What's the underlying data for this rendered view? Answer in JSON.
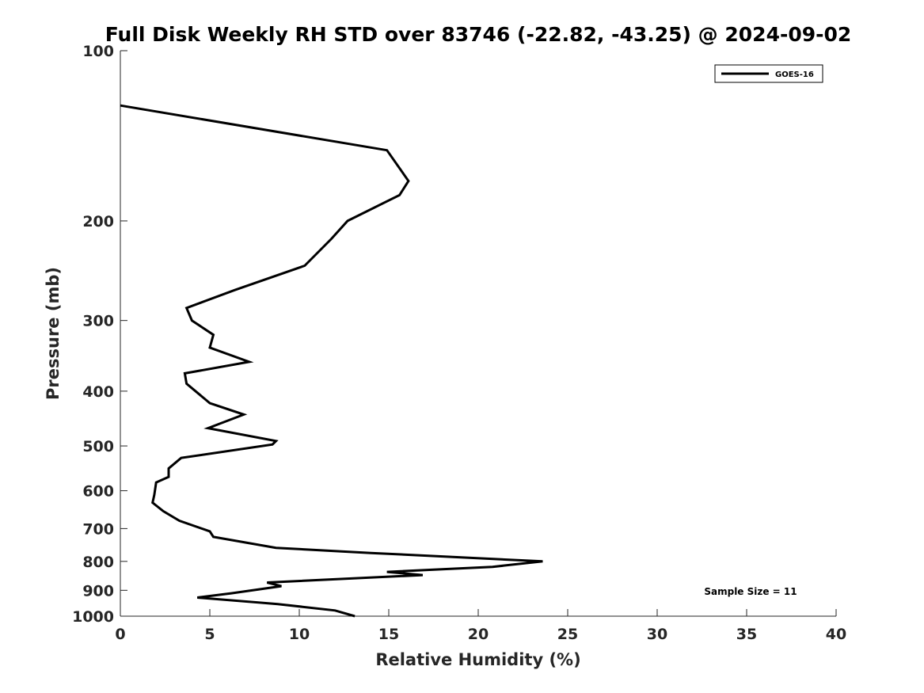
{
  "chart_data": {
    "type": "line",
    "title": "Full Disk Weekly RH STD over 83746 (-22.82, -43.25) @ 2024-09-02",
    "xlabel": "Relative Humidity (%)",
    "ylabel": "Pressure (mb)",
    "xlim": [
      0,
      40
    ],
    "ylim": [
      100,
      1000
    ],
    "y_scale": "log",
    "y_reversed": true,
    "x_ticks": [
      0,
      5,
      10,
      15,
      20,
      25,
      30,
      35,
      40
    ],
    "y_ticks": [
      100,
      200,
      300,
      400,
      500,
      600,
      700,
      800,
      900,
      1000
    ],
    "grid": false,
    "legend_position": "top-right",
    "annotation": "Sample Size = 11",
    "line_color": "#000000",
    "series": [
      {
        "name": "GOES-16",
        "points": [
          [
            0.0,
            125
          ],
          [
            14.9,
            150
          ],
          [
            16.1,
            170
          ],
          [
            15.6,
            180
          ],
          [
            12.7,
            200
          ],
          [
            11.8,
            215
          ],
          [
            10.3,
            240
          ],
          [
            6.4,
            265
          ],
          [
            3.7,
            285
          ],
          [
            4.0,
            300
          ],
          [
            5.2,
            318
          ],
          [
            5.0,
            335
          ],
          [
            7.2,
            355
          ],
          [
            3.6,
            372
          ],
          [
            3.7,
            388
          ],
          [
            5.0,
            420
          ],
          [
            6.9,
            440
          ],
          [
            4.9,
            465
          ],
          [
            8.7,
            490
          ],
          [
            8.5,
            497
          ],
          [
            3.4,
            525
          ],
          [
            2.7,
            548
          ],
          [
            2.7,
            567
          ],
          [
            2.0,
            580
          ],
          [
            1.9,
            610
          ],
          [
            1.8,
            630
          ],
          [
            2.4,
            652
          ],
          [
            3.3,
            678
          ],
          [
            5.0,
            708
          ],
          [
            5.2,
            724
          ],
          [
            8.7,
            757
          ],
          [
            14.0,
            773
          ],
          [
            23.6,
            800
          ],
          [
            20.8,
            818
          ],
          [
            14.9,
            835
          ],
          [
            16.9,
            846
          ],
          [
            8.2,
            872
          ],
          [
            9.0,
            885
          ],
          [
            6.2,
            911
          ],
          [
            4.3,
            927
          ],
          [
            8.8,
            952
          ],
          [
            12.0,
            977
          ],
          [
            13.1,
            1000
          ]
        ]
      }
    ]
  }
}
